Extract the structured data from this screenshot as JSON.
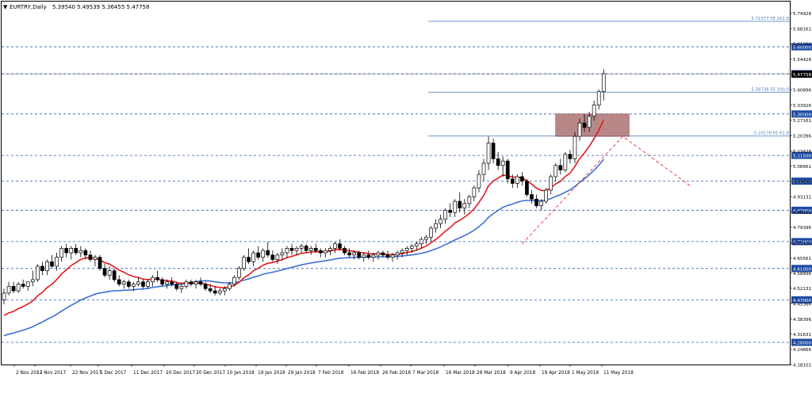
{
  "header": {
    "menu_glyph": "▼",
    "symbol": "EURTRY,Daily",
    "ohlc": "5.39540 5.49539 5.36455 5.47758"
  },
  "colors": {
    "candle": "#000000",
    "ema_fast": "#e01b1b",
    "ema_slow": "#3b6fd6",
    "level_line": "#2a5db0",
    "fib_line": "#6f97c9",
    "fib_text": "#4f7fbf",
    "price_tag_bg": "#1d4aa3",
    "current_price_bg": "#000000",
    "zone": "#a06060",
    "zigzag": "#e01b1b"
  },
  "chart_data": {
    "type": "candlestick",
    "title": "EURTRY,Daily",
    "ylim": [
      4.18101,
      5.802
    ],
    "x_tick_labels": [
      "2 Nov 2017",
      "13 Nov 2017",
      "22 Nov 2017",
      "1 Dec 2017",
      "11 Dec 2017",
      "20 Dec 2017",
      "30 Dec 2017",
      "10 Jan 2018",
      "19 Jan 2018",
      "29 Jan 2018",
      "7 Feb 2018",
      "16 Feb 2018",
      "26 Feb 2018",
      "7 Mar 2018",
      "16 Mar 2018",
      "28 Mar 2018",
      "9 Apr 2018",
      "19 Apr 2018",
      "1 May 2018",
      "11 May 2018"
    ],
    "y_tick_labels": [
      "5.74926",
      "5.68161",
      "5.61396",
      "5.54426",
      "5.47758",
      "5.40896",
      "5.33926",
      "5.27161",
      "5.20396",
      "5.13426",
      "5.06661",
      "4.99896",
      "4.93131",
      "4.86161",
      "4.79396",
      "4.72426",
      "4.65561",
      "4.58896",
      "4.52131",
      "4.45366",
      "4.38396",
      "4.31631",
      "4.24866",
      "4.18101"
    ],
    "levels": [
      {
        "price": 5.6,
        "label": "5.60000"
      },
      {
        "price": 5.48,
        "label": "5.48000"
      },
      {
        "price": 5.3,
        "label": "5.30000"
      },
      {
        "price": 5.115,
        "label": "5.11500"
      },
      {
        "price": 5.0,
        "label": "5.00000"
      },
      {
        "price": 4.87,
        "label": "4.87000"
      },
      {
        "price": 4.73,
        "label": "4.73000"
      },
      {
        "price": 4.61,
        "label": "4.61000"
      },
      {
        "price": 4.47,
        "label": "4.47000"
      },
      {
        "price": 4.28,
        "label": "4.28000"
      }
    ],
    "fib_levels": [
      {
        "price": 5.71377,
        "label": "5.71377 FE 161.8"
      },
      {
        "price": 5.39736,
        "label": "5.39736 FE 100.0"
      },
      {
        "price": 5.20178,
        "label": "5.20178 FE 61.8"
      }
    ],
    "current_price": {
      "value": 5.47758,
      "label": "5.47758"
    },
    "zone": {
      "price_top": 5.3,
      "price_bottom": 5.2
    },
    "zigzag": [
      {
        "bar": 108,
        "price": 4.72
      },
      {
        "bar": 129,
        "price": 5.2
      },
      {
        "bar": 143,
        "price": 4.98
      }
    ],
    "series": [
      {
        "name": "EMA fast",
        "values": []
      },
      {
        "name": "EMA slow",
        "values": []
      }
    ],
    "ohlc": [
      [
        4.47,
        4.52,
        4.45,
        4.5
      ],
      [
        4.5,
        4.55,
        4.49,
        4.53
      ],
      [
        4.53,
        4.55,
        4.5,
        4.51
      ],
      [
        4.51,
        4.55,
        4.5,
        4.54
      ],
      [
        4.54,
        4.56,
        4.52,
        4.53
      ],
      [
        4.53,
        4.55,
        4.51,
        4.55
      ],
      [
        4.55,
        4.6,
        4.53,
        4.56
      ],
      [
        4.56,
        4.63,
        4.55,
        4.62
      ],
      [
        4.62,
        4.64,
        4.58,
        4.6
      ],
      [
        4.6,
        4.65,
        4.58,
        4.64
      ],
      [
        4.64,
        4.67,
        4.61,
        4.62
      ],
      [
        4.62,
        4.68,
        4.6,
        4.66
      ],
      [
        4.66,
        4.71,
        4.64,
        4.7
      ],
      [
        4.7,
        4.72,
        4.66,
        4.68
      ],
      [
        4.68,
        4.71,
        4.65,
        4.7
      ],
      [
        4.7,
        4.72,
        4.67,
        4.68
      ],
      [
        4.68,
        4.71,
        4.66,
        4.69
      ],
      [
        4.69,
        4.7,
        4.65,
        4.67
      ],
      [
        4.67,
        4.69,
        4.64,
        4.65
      ],
      [
        4.65,
        4.67,
        4.62,
        4.66
      ],
      [
        4.66,
        4.67,
        4.6,
        4.61
      ],
      [
        4.61,
        4.63,
        4.57,
        4.58
      ],
      [
        4.58,
        4.62,
        4.56,
        4.6
      ],
      [
        4.6,
        4.61,
        4.55,
        4.56
      ],
      [
        4.56,
        4.58,
        4.53,
        4.54
      ],
      [
        4.54,
        4.56,
        4.52,
        4.55
      ],
      [
        4.55,
        4.56,
        4.52,
        4.53
      ],
      [
        4.53,
        4.55,
        4.51,
        4.54
      ],
      [
        4.54,
        4.57,
        4.53,
        4.55
      ],
      [
        4.55,
        4.56,
        4.52,
        4.53
      ],
      [
        4.53,
        4.56,
        4.52,
        4.55
      ],
      [
        4.55,
        4.58,
        4.53,
        4.57
      ],
      [
        4.57,
        4.6,
        4.55,
        4.56
      ],
      [
        4.56,
        4.57,
        4.53,
        4.54
      ],
      [
        4.54,
        4.56,
        4.52,
        4.55
      ],
      [
        4.55,
        4.57,
        4.53,
        4.54
      ],
      [
        4.54,
        4.55,
        4.51,
        4.52
      ],
      [
        4.52,
        4.54,
        4.5,
        4.53
      ],
      [
        4.53,
        4.56,
        4.52,
        4.55
      ],
      [
        4.55,
        4.56,
        4.53,
        4.54
      ],
      [
        4.54,
        4.56,
        4.52,
        4.55
      ],
      [
        4.55,
        4.57,
        4.53,
        4.54
      ],
      [
        4.54,
        4.55,
        4.51,
        4.52
      ],
      [
        4.52,
        4.54,
        4.5,
        4.51
      ],
      [
        4.51,
        4.53,
        4.49,
        4.5
      ],
      [
        4.5,
        4.52,
        4.49,
        4.51
      ],
      [
        4.51,
        4.53,
        4.49,
        4.52
      ],
      [
        4.52,
        4.55,
        4.51,
        4.54
      ],
      [
        4.54,
        4.58,
        4.53,
        4.57
      ],
      [
        4.57,
        4.62,
        4.56,
        4.61
      ],
      [
        4.61,
        4.67,
        4.6,
        4.66
      ],
      [
        4.66,
        4.7,
        4.63,
        4.64
      ],
      [
        4.64,
        4.69,
        4.62,
        4.68
      ],
      [
        4.68,
        4.71,
        4.65,
        4.66
      ],
      [
        4.66,
        4.7,
        4.64,
        4.69
      ],
      [
        4.69,
        4.73,
        4.66,
        4.67
      ],
      [
        4.67,
        4.69,
        4.64,
        4.65
      ],
      [
        4.65,
        4.68,
        4.63,
        4.67
      ],
      [
        4.67,
        4.7,
        4.65,
        4.68
      ],
      [
        4.68,
        4.71,
        4.66,
        4.7
      ],
      [
        4.7,
        4.72,
        4.67,
        4.69
      ],
      [
        4.69,
        4.71,
        4.67,
        4.7
      ],
      [
        4.7,
        4.72,
        4.68,
        4.71
      ],
      [
        4.71,
        4.72,
        4.68,
        4.69
      ],
      [
        4.69,
        4.71,
        4.67,
        4.7
      ],
      [
        4.7,
        4.72,
        4.68,
        4.69
      ],
      [
        4.69,
        4.7,
        4.66,
        4.68
      ],
      [
        4.68,
        4.7,
        4.66,
        4.69
      ],
      [
        4.69,
        4.71,
        4.67,
        4.7
      ],
      [
        4.7,
        4.73,
        4.68,
        4.72
      ],
      [
        4.72,
        4.74,
        4.69,
        4.7
      ],
      [
        4.7,
        4.71,
        4.67,
        4.68
      ],
      [
        4.68,
        4.7,
        4.66,
        4.67
      ],
      [
        4.67,
        4.69,
        4.65,
        4.68
      ],
      [
        4.68,
        4.69,
        4.65,
        4.66
      ],
      [
        4.66,
        4.68,
        4.64,
        4.67
      ],
      [
        4.67,
        4.69,
        4.65,
        4.66
      ],
      [
        4.66,
        4.68,
        4.64,
        4.67
      ],
      [
        4.67,
        4.69,
        4.65,
        4.68
      ],
      [
        4.68,
        4.69,
        4.66,
        4.67
      ],
      [
        4.67,
        4.69,
        4.65,
        4.66
      ],
      [
        4.66,
        4.68,
        4.64,
        4.67
      ],
      [
        4.67,
        4.69,
        4.65,
        4.68
      ],
      [
        4.68,
        4.7,
        4.66,
        4.69
      ],
      [
        4.69,
        4.71,
        4.67,
        4.7
      ],
      [
        4.7,
        4.72,
        4.68,
        4.71
      ],
      [
        4.71,
        4.73,
        4.69,
        4.72
      ],
      [
        4.72,
        4.75,
        4.7,
        4.74
      ],
      [
        4.74,
        4.76,
        4.72,
        4.75
      ],
      [
        4.75,
        4.8,
        4.73,
        4.79
      ],
      [
        4.79,
        4.83,
        4.77,
        4.81
      ],
      [
        4.81,
        4.85,
        4.79,
        4.83
      ],
      [
        4.83,
        4.88,
        4.81,
        4.87
      ],
      [
        4.87,
        4.9,
        4.84,
        4.86
      ],
      [
        4.86,
        4.92,
        4.84,
        4.91
      ],
      [
        4.91,
        4.95,
        4.86,
        4.88
      ],
      [
        4.88,
        4.92,
        4.85,
        4.9
      ],
      [
        4.9,
        4.94,
        4.88,
        4.93
      ],
      [
        4.93,
        4.98,
        4.91,
        4.97
      ],
      [
        4.97,
        5.05,
        4.95,
        5.03
      ],
      [
        5.03,
        5.1,
        5.0,
        5.08
      ],
      [
        5.08,
        5.2,
        5.05,
        5.17
      ],
      [
        5.17,
        5.19,
        5.08,
        5.1
      ],
      [
        5.1,
        5.13,
        5.05,
        5.07
      ],
      [
        5.07,
        5.11,
        5.02,
        5.09
      ],
      [
        5.09,
        5.1,
        4.99,
        5.01
      ],
      [
        5.01,
        5.03,
        4.97,
        4.99
      ],
      [
        4.99,
        5.03,
        4.97,
        5.02
      ],
      [
        5.02,
        5.04,
        4.98,
        5.0
      ],
      [
        5.0,
        5.01,
        4.93,
        4.94
      ],
      [
        4.94,
        4.96,
        4.9,
        4.92
      ],
      [
        4.92,
        4.94,
        4.88,
        4.89
      ],
      [
        4.89,
        4.92,
        4.87,
        4.91
      ],
      [
        4.91,
        4.97,
        4.9,
        4.96
      ],
      [
        4.96,
        5.03,
        4.94,
        5.02
      ],
      [
        5.02,
        5.08,
        5.0,
        5.07
      ],
      [
        5.07,
        5.1,
        5.03,
        5.05
      ],
      [
        5.05,
        5.13,
        5.04,
        5.12
      ],
      [
        5.12,
        5.14,
        5.08,
        5.1
      ],
      [
        5.1,
        5.22,
        5.08,
        5.2
      ],
      [
        5.2,
        5.28,
        5.18,
        5.26
      ],
      [
        5.26,
        5.3,
        5.22,
        5.24
      ],
      [
        5.24,
        5.31,
        5.22,
        5.29
      ],
      [
        5.29,
        5.36,
        5.27,
        5.34
      ],
      [
        5.34,
        5.41,
        5.32,
        5.4
      ],
      [
        5.4,
        5.5,
        5.36,
        5.48
      ]
    ]
  },
  "axis_labels_bound": {}
}
